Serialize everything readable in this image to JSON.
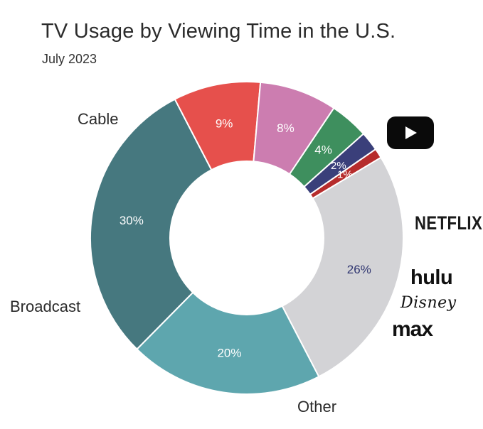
{
  "chart_data": {
    "type": "donut",
    "title": "TV Usage by Viewing Time in the U.S.",
    "subtitle": "July 2023",
    "categories": [
      "Cable",
      "YouTube",
      "Netflix",
      "Hulu",
      "Disney",
      "Max",
      "Other",
      "Broadcast"
    ],
    "values": [
      30,
      9,
      8,
      4,
      2,
      1,
      26,
      20
    ],
    "value_labels": [
      "30%",
      "9%",
      "8%",
      "4%",
      "2%",
      "1%",
      "26%",
      "20%"
    ],
    "colors": [
      "#46787f",
      "#e6504c",
      "#cc7db0",
      "#3e8f5e",
      "#3a3f7a",
      "#b62c2c",
      "#d3d3d6",
      "#5ea6ae"
    ],
    "label_colors": [
      "#ffffff",
      "#ffffff",
      "#ffffff",
      "#ffffff",
      "#ffffff",
      "#ffffff",
      "#2f3570",
      "#ffffff"
    ],
    "category_labels": {
      "cable": "Cable",
      "broadcast": "Broadcast",
      "other": "Other"
    },
    "logos": {
      "youtube": "youtube-icon",
      "netflix": "NETFLIX",
      "hulu": "hulu",
      "disney": "Disney",
      "max": "max"
    }
  }
}
